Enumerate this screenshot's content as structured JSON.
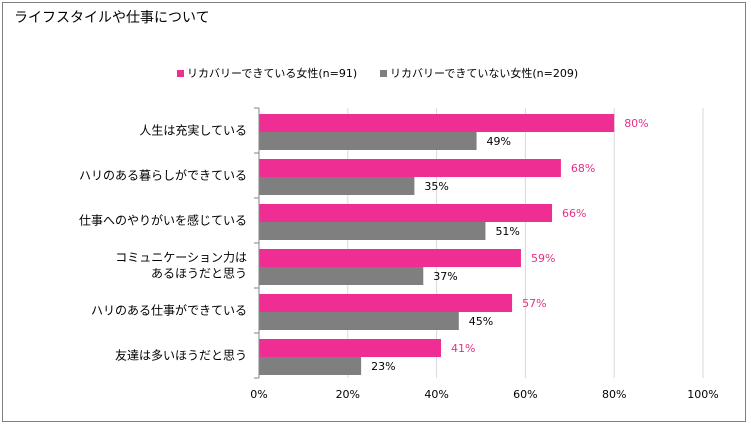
{
  "title": "ライフスタイルや仕事について",
  "colors": {
    "series_a": "#ee2e92",
    "series_b": "#7f7f7f",
    "grid": "#d9d9d9",
    "axis": "#868686"
  },
  "chart_data": {
    "type": "bar",
    "orientation": "horizontal",
    "title": "ライフスタイルや仕事について",
    "categories": [
      [
        "人生は充実している"
      ],
      [
        "ハリのある暮らしができている"
      ],
      [
        "仕事へのやりがいを感じている"
      ],
      [
        "コミュニケーション力は",
        "あるほうだと思う"
      ],
      [
        "ハリのある仕事ができている"
      ],
      [
        "友達は多いほうだと思う"
      ]
    ],
    "series": [
      {
        "name": "リカバリーできている女性(n=91)",
        "values": [
          80,
          68,
          66,
          59,
          57,
          41
        ]
      },
      {
        "name": "リカバリーできていない女性(n=209)",
        "values": [
          49,
          35,
          51,
          37,
          45,
          23
        ]
      }
    ],
    "xlim": [
      0,
      100
    ],
    "xticks": [
      0,
      20,
      40,
      60,
      80,
      100
    ],
    "tick_format": "%",
    "value_suffix": "%",
    "grid": true,
    "legend_position": "top"
  }
}
